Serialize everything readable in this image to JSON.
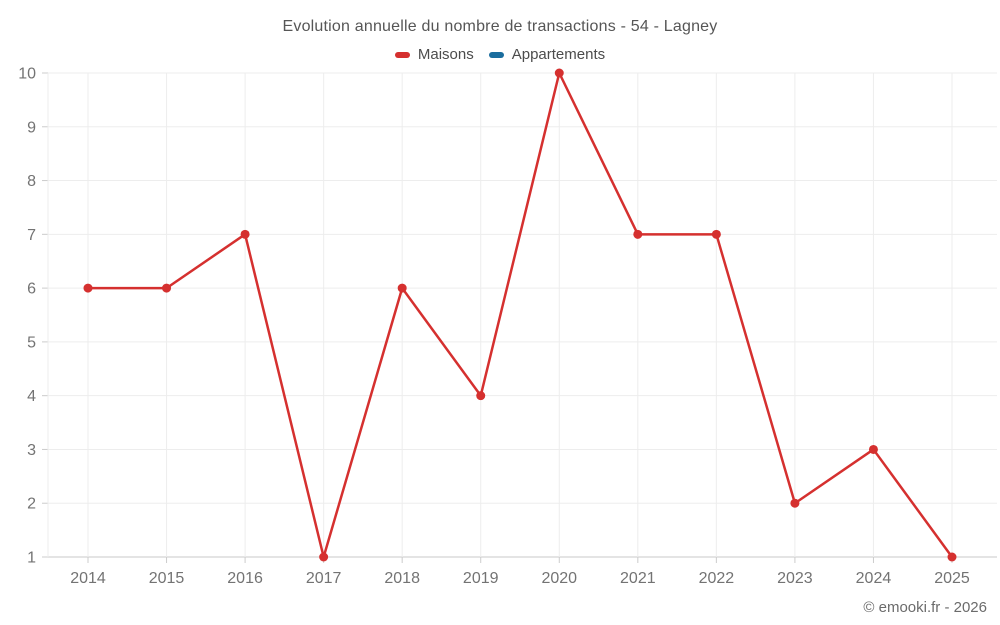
{
  "page": {
    "title": "Evolution annuelle du nombre de transactions - 54 - Lagney",
    "footer_credit": "© emooki.fr - 2026"
  },
  "legend": {
    "items": [
      {
        "label": "Maisons",
        "color": "#d5302f"
      },
      {
        "label": "Appartements",
        "color": "#1a6d9e"
      }
    ]
  },
  "chart_data": {
    "type": "line",
    "title": "Evolution annuelle du nombre de transactions - 54 - Lagney",
    "categories": [
      "2014",
      "2015",
      "2016",
      "2017",
      "2018",
      "2019",
      "2020",
      "2021",
      "2022",
      "2023",
      "2024",
      "2025"
    ],
    "series": [
      {
        "name": "Maisons",
        "color": "#d5302f",
        "values": [
          6,
          6,
          7,
          1,
          6,
          4,
          10,
          7,
          7,
          2,
          3,
          1
        ]
      },
      {
        "name": "Appartements",
        "color": "#1a6d9e",
        "values": []
      }
    ],
    "xlabel": "",
    "ylabel": "",
    "ylim": [
      1,
      10
    ],
    "yticks": [
      1,
      2,
      3,
      4,
      5,
      6,
      7,
      8,
      9,
      10
    ],
    "grid": true,
    "legend_position": "top",
    "gridline_color": "#ededed",
    "axis_line_color": "#c9c9c9",
    "tick_color": "#cccccc",
    "tick_label_color": "#737373"
  }
}
